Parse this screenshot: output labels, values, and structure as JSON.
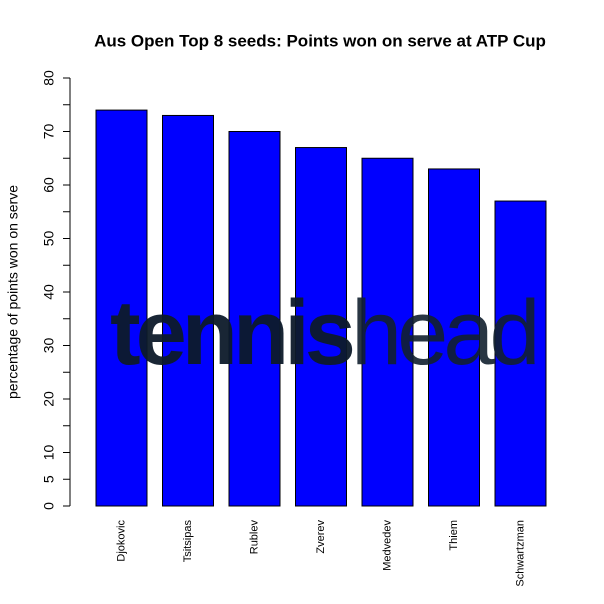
{
  "chart_data": {
    "type": "bar",
    "title": "Aus Open Top 8 seeds: Points won on serve at ATP Cup",
    "ylabel": "percentage of points won on serve",
    "categories": [
      "Djokovic",
      "Tsitsipas",
      "Rublev",
      "Zverev",
      "Medvedev",
      "Thiem",
      "Schwartzman"
    ],
    "values": [
      74,
      73,
      70,
      67,
      65,
      63,
      57
    ],
    "color": "#0000ff",
    "ylim": [
      0,
      80
    ],
    "yticks": [
      0,
      5,
      10,
      20,
      30,
      40,
      50,
      60,
      70,
      80
    ],
    "minor_yticks": [
      15,
      25,
      35,
      45,
      55,
      65,
      75
    ],
    "grid": false,
    "watermark": [
      "tennis",
      "head"
    ]
  }
}
